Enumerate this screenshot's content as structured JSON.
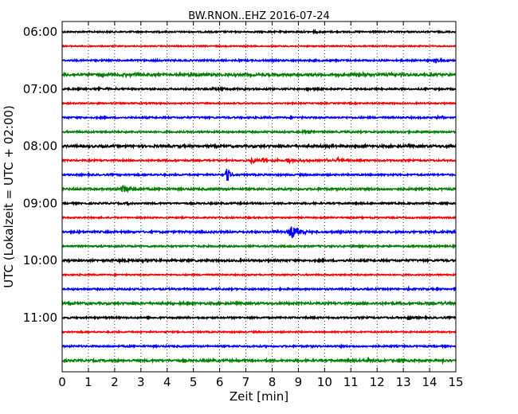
{
  "chart_data": {
    "type": "line",
    "title": "BW.RNON..EHZ 2016-07-24",
    "xlabel": "Zeit  [min]",
    "ylabel": "UTC (Lokalzeit = UTC + 02:00)",
    "xlim": [
      0,
      15
    ],
    "x_ticks": [
      "0",
      "1",
      "2",
      "3",
      "4",
      "5",
      "6",
      "7",
      "8",
      "9",
      "10",
      "11",
      "12",
      "13",
      "14",
      "15"
    ],
    "y_tick_labels": [
      "06:00",
      "07:00",
      "08:00",
      "09:00",
      "10:00",
      "11:00"
    ],
    "grid": {
      "vertical": "dotted"
    },
    "traces_per_hour": 4,
    "trace_minutes": 15,
    "trace_colors": [
      "#000000",
      "#ff0000",
      "#0000ff",
      "#008000"
    ],
    "series": [
      {
        "start": "06:00",
        "color": "#000000",
        "noise": 0.9,
        "events": [
          {
            "t": 9.6,
            "amp": 1.4,
            "dur": 0.15
          }
        ]
      },
      {
        "start": "06:15",
        "color": "#ff0000",
        "noise": 0.7,
        "events": []
      },
      {
        "start": "06:30",
        "color": "#0000ff",
        "noise": 1.0,
        "events": [
          {
            "t": 6.3,
            "amp": 1.6,
            "dur": 0.1
          },
          {
            "t": 14.2,
            "amp": 3.2,
            "dur": 0.15
          }
        ]
      },
      {
        "start": "06:45",
        "color": "#008000",
        "noise": 1.5,
        "events": [
          {
            "t": 1.5,
            "amp": 2.2,
            "dur": 1.2
          },
          {
            "t": 11.2,
            "amp": 1.8,
            "dur": 1.4
          }
        ]
      },
      {
        "start": "07:00",
        "color": "#000000",
        "noise": 1.0,
        "events": [
          {
            "t": 1.4,
            "amp": 1.8,
            "dur": 0.5
          },
          {
            "t": 5.8,
            "amp": 1.8,
            "dur": 0.8
          },
          {
            "t": 9.3,
            "amp": 3.8,
            "dur": 0.12
          }
        ]
      },
      {
        "start": "07:15",
        "color": "#ff0000",
        "noise": 0.8,
        "events": []
      },
      {
        "start": "07:30",
        "color": "#0000ff",
        "noise": 1.0,
        "events": [
          {
            "t": 14.3,
            "amp": 1.5,
            "dur": 0.3
          }
        ]
      },
      {
        "start": "07:45",
        "color": "#008000",
        "noise": 1.0,
        "events": [
          {
            "t": 9.2,
            "amp": 1.8,
            "dur": 0.3
          }
        ]
      },
      {
        "start": "08:00",
        "color": "#000000",
        "noise": 1.4,
        "events": [
          {
            "t": 14.6,
            "amp": 1.5,
            "dur": 0.2
          }
        ]
      },
      {
        "start": "08:15",
        "color": "#ff0000",
        "noise": 1.0,
        "events": [
          {
            "t": 7.2,
            "amp": 3.8,
            "dur": 0.25
          },
          {
            "t": 7.6,
            "amp": 3.5,
            "dur": 0.2
          },
          {
            "t": 8.1,
            "amp": 3.0,
            "dur": 0.2
          },
          {
            "t": 8.6,
            "amp": 3.8,
            "dur": 0.15
          },
          {
            "t": 9.0,
            "amp": 2.8,
            "dur": 0.25
          },
          {
            "t": 10.1,
            "amp": 3.2,
            "dur": 0.25
          },
          {
            "t": 10.5,
            "amp": 3.0,
            "dur": 0.2
          }
        ]
      },
      {
        "start": "08:30",
        "color": "#0000ff",
        "noise": 1.0,
        "events": [
          {
            "t": 6.25,
            "amp": 12,
            "dur": 0.12
          }
        ]
      },
      {
        "start": "08:45",
        "color": "#008000",
        "noise": 1.2,
        "events": [
          {
            "t": 2.3,
            "amp": 5.5,
            "dur": 0.25
          }
        ]
      },
      {
        "start": "09:00",
        "color": "#000000",
        "noise": 1.0,
        "events": [
          {
            "t": 2.5,
            "amp": 2.2,
            "dur": 0.2
          }
        ]
      },
      {
        "start": "09:15",
        "color": "#ff0000",
        "noise": 0.8,
        "events": [
          {
            "t": 11.7,
            "amp": 1.4,
            "dur": 0.2
          }
        ]
      },
      {
        "start": "09:30",
        "color": "#0000ff",
        "noise": 1.2,
        "events": [
          {
            "t": 8.7,
            "amp": 11,
            "dur": 0.3
          },
          {
            "t": 8.1,
            "amp": 2.5,
            "dur": 0.4
          }
        ]
      },
      {
        "start": "09:45",
        "color": "#008000",
        "noise": 1.0,
        "events": []
      },
      {
        "start": "10:00",
        "color": "#000000",
        "noise": 1.2,
        "events": [
          {
            "t": 2.2,
            "amp": 2.2,
            "dur": 1.2
          }
        ]
      },
      {
        "start": "10:15",
        "color": "#ff0000",
        "noise": 0.8,
        "events": []
      },
      {
        "start": "10:30",
        "color": "#0000ff",
        "noise": 1.0,
        "events": [
          {
            "t": 13.2,
            "amp": 1.5,
            "dur": 0.2
          }
        ]
      },
      {
        "start": "10:45",
        "color": "#008000",
        "noise": 1.3,
        "events": [
          {
            "t": 4.2,
            "amp": 1.6,
            "dur": 0.3
          },
          {
            "t": 14.5,
            "amp": 1.6,
            "dur": 0.3
          }
        ]
      },
      {
        "start": "11:00",
        "color": "#000000",
        "noise": 1.0,
        "events": [
          {
            "t": 13.15,
            "amp": 4.5,
            "dur": 0.12
          }
        ]
      },
      {
        "start": "11:15",
        "color": "#ff0000",
        "noise": 0.8,
        "events": []
      },
      {
        "start": "11:30",
        "color": "#0000ff",
        "noise": 1.0,
        "events": []
      },
      {
        "start": "11:45",
        "color": "#008000",
        "noise": 1.3,
        "events": [
          {
            "t": 11.5,
            "amp": 1.5,
            "dur": 0.4
          },
          {
            "t": 14.5,
            "amp": 2.5,
            "dur": 0.2
          }
        ]
      }
    ]
  }
}
